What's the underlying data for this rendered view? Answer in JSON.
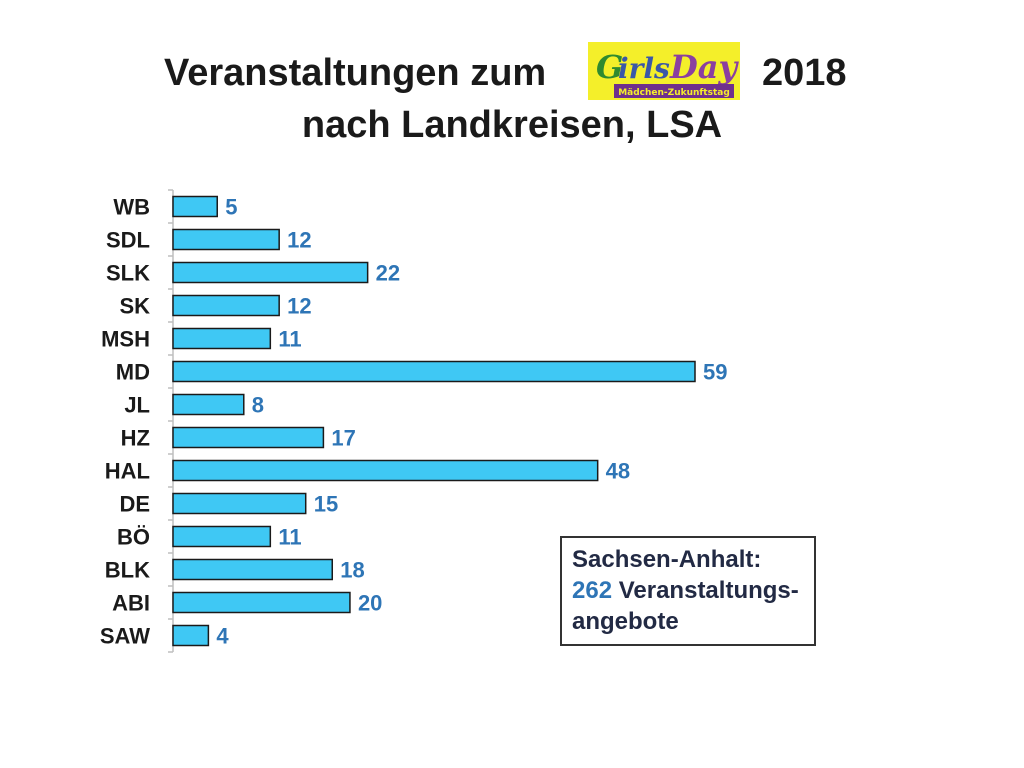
{
  "title": {
    "part1": "Veranstaltungen zum",
    "part2": "2018",
    "line2": "nach Landkreisen, LSA"
  },
  "logo": {
    "text_main": "GirlsDay",
    "text_sub": "Mädchen-Zukunftstag"
  },
  "info_box": {
    "line1": "Sachsen-Anhalt:",
    "total": "262",
    "line2_rest": " Veranstaltungs-",
    "line3": "angebote"
  },
  "colors": {
    "bar_fill": "#3fc8f4",
    "bar_stroke": "#1a1a1a",
    "value_label": "#2e75b6",
    "axis_label": "#1a1a1a"
  },
  "chart_data": {
    "type": "bar",
    "orientation": "horizontal",
    "categories": [
      "WB",
      "SDL",
      "SLK",
      "SK",
      "MSH",
      "MD",
      "JL",
      "HZ",
      "HAL",
      "DE",
      "BÖ",
      "BLK",
      "ABI",
      "SAW"
    ],
    "values": [
      5,
      12,
      22,
      12,
      11,
      59,
      8,
      17,
      48,
      15,
      11,
      18,
      20,
      4
    ],
    "title": "",
    "xlabel": "",
    "ylabel": "",
    "xlim": [
      0,
      59
    ],
    "grid": false,
    "legend": "none"
  }
}
